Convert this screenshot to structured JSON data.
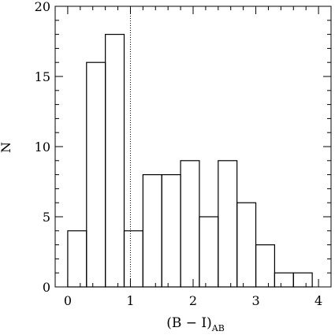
{
  "chart_data": {
    "type": "histogram",
    "xlabel_main": "(B − I)",
    "xlabel_sub": "AB",
    "ylabel": "N",
    "xlim": [
      -0.2,
      4.2
    ],
    "ylim": [
      0,
      20
    ],
    "x_ticks": [
      0,
      1,
      2,
      3,
      4
    ],
    "x_tick_labels": [
      "0",
      "1",
      "2",
      "3",
      "4"
    ],
    "x_minor_step": 0.2,
    "y_ticks": [
      0,
      5,
      10,
      15,
      20
    ],
    "y_tick_labels": [
      "0",
      "5",
      "10",
      "15",
      "20"
    ],
    "y_minor_step": 1,
    "bin_edges": [
      0,
      0.3,
      0.6,
      0.9,
      1.2,
      1.5,
      1.8,
      2.1,
      2.4,
      2.7,
      3.0,
      3.3,
      3.6,
      3.9
    ],
    "counts": [
      4,
      16,
      18,
      4,
      8,
      8,
      9,
      5,
      9,
      6,
      3,
      1,
      1
    ],
    "vline_x": 1.0,
    "vline_style": "dotted"
  }
}
